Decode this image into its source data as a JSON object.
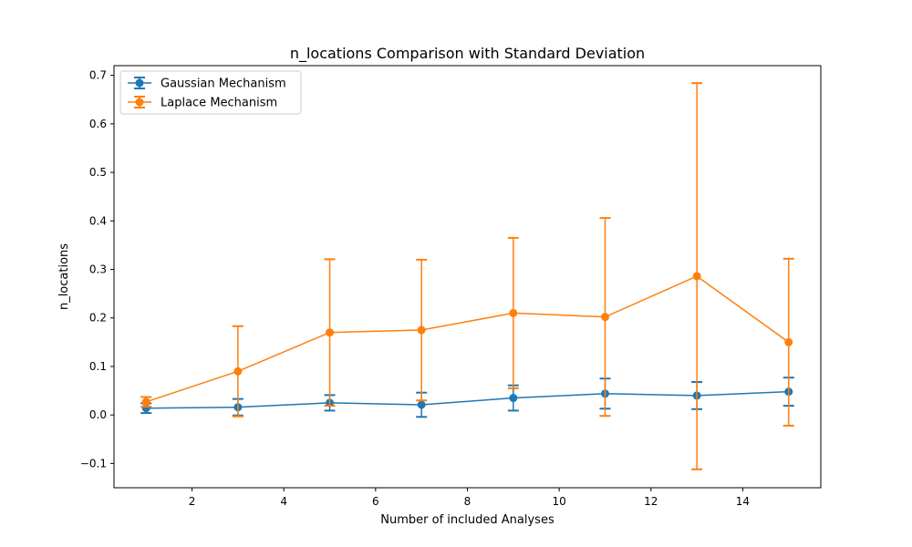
{
  "chart_data": {
    "type": "line",
    "title": "n_locations Comparison with Standard Deviation",
    "xlabel": "Number of included Analyses",
    "ylabel": "n_locations",
    "xlim": [
      0.3,
      15.7
    ],
    "ylim": [
      -0.15,
      0.72
    ],
    "xticks": [
      2,
      4,
      6,
      8,
      10,
      12,
      14
    ],
    "xtick_labels": [
      "2",
      "4",
      "6",
      "8",
      "10",
      "12",
      "14"
    ],
    "yticks": [
      -0.1,
      0.0,
      0.1,
      0.2,
      0.3,
      0.4,
      0.5,
      0.6,
      0.7
    ],
    "ytick_labels": [
      "−0.1",
      "0.0",
      "0.1",
      "0.2",
      "0.3",
      "0.4",
      "0.5",
      "0.6",
      "0.7"
    ],
    "grid": false,
    "legend_position": "top-left",
    "x": [
      1,
      3,
      5,
      7,
      9,
      11,
      13,
      15
    ],
    "series": [
      {
        "name": "Gaussian Mechanism",
        "color": "#1f77b4",
        "values": [
          0.014,
          0.016,
          0.025,
          0.021,
          0.035,
          0.044,
          0.04,
          0.048
        ],
        "std": [
          0.01,
          0.017,
          0.016,
          0.025,
          0.026,
          0.031,
          0.028,
          0.029
        ]
      },
      {
        "name": "Laplace Mechanism",
        "color": "#ff7f0e",
        "values": [
          0.027,
          0.09,
          0.17,
          0.175,
          0.21,
          0.202,
          0.286,
          0.15
        ],
        "std": [
          0.01,
          0.093,
          0.151,
          0.145,
          0.155,
          0.204,
          0.398,
          0.172
        ]
      }
    ]
  }
}
